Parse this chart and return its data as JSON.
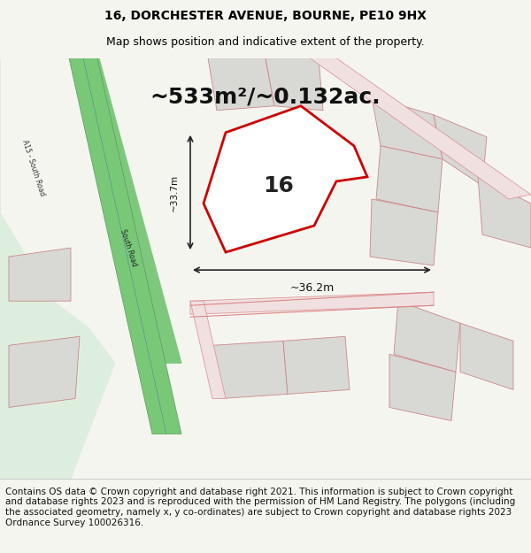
{
  "title_line1": "16, DORCHESTER AVENUE, BOURNE, PE10 9HX",
  "title_line2": "Map shows position and indicative extent of the property.",
  "area_text": "~533m²/~0.132ac.",
  "number_label": "16",
  "dim_width": "~36.2m",
  "dim_height": "~33.7m",
  "road_label": "South Road",
  "road_label2": "A15 - South Road",
  "footer_text": "Contains OS data © Crown copyright and database right 2021. This information is subject to Crown copyright and database rights 2023 and is reproduced with the permission of HM Land Registry. The polygons (including the associated geometry, namely x, y co-ordinates) are subject to Crown copyright and database rights 2023 Ordnance Survey 100026316.",
  "bg_color": "#f5f5f0",
  "map_bg": "#ffffff",
  "green_strip_color": "#7ec87e",
  "green_area_color": "#c8e6c8",
  "road_line_color": "#5a9a5a",
  "plot_outline_color": "#cc0000",
  "plot_fill_color": "#ffffff",
  "other_plot_color": "#d0d0d0",
  "dim_line_color": "#222222",
  "road_boundary_color": "#e8a0a0",
  "footer_bg": "#ffffff",
  "title_fontsize": 10,
  "subtitle_fontsize": 9,
  "area_fontsize": 18,
  "number_fontsize": 18,
  "footer_fontsize": 7.5
}
